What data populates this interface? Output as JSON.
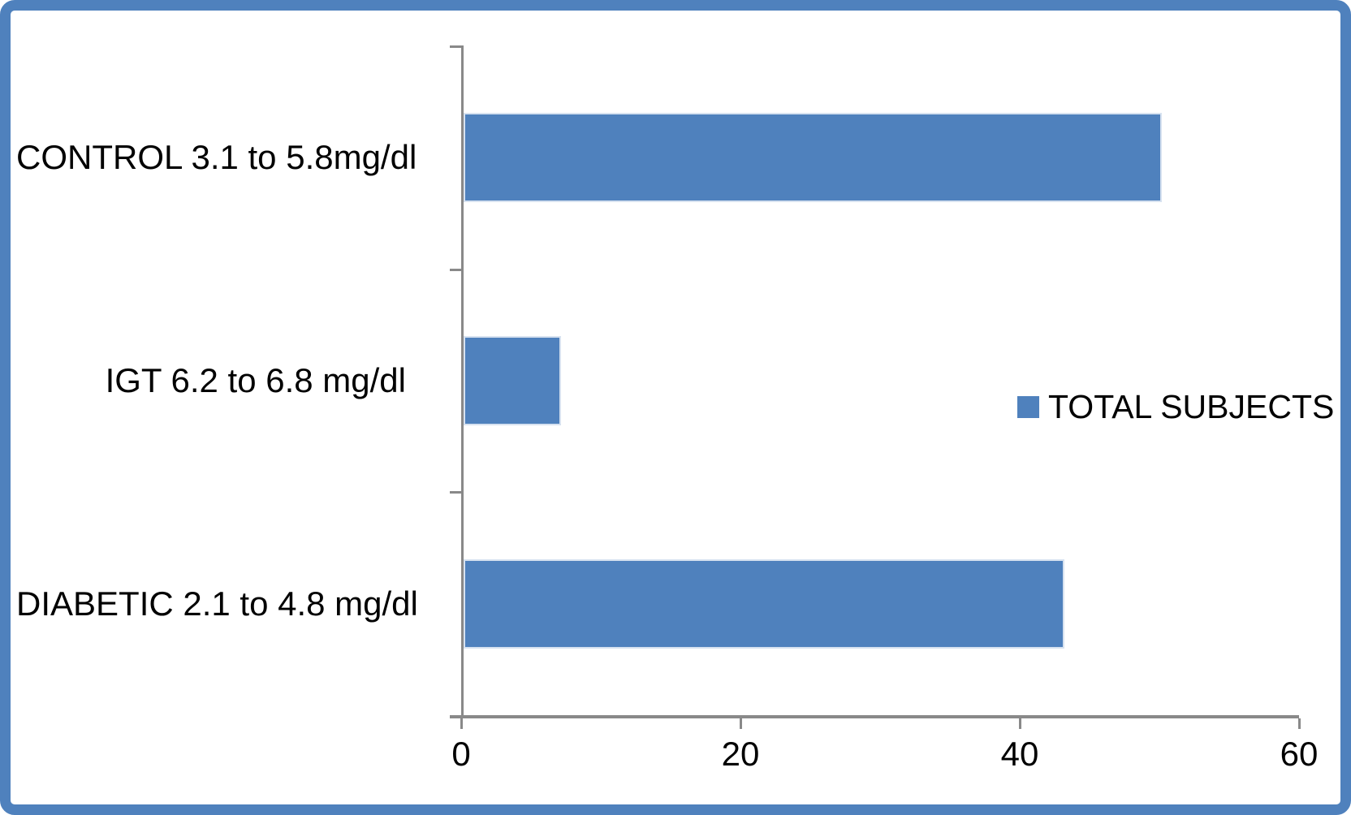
{
  "colors": {
    "bar_fill": "#4F81BD",
    "bar_edge": "#D7E2F0",
    "frame_border": "#4F81BD",
    "axis_line": "#898989",
    "text": "#000000",
    "background": "#FFFFFF"
  },
  "legend": {
    "label": "TOTAL SUBJECTS",
    "swatch_color": "#4F81BD",
    "position": "center-right"
  },
  "chart_data": {
    "type": "bar",
    "orientation": "horizontal",
    "title": "",
    "xlabel": "",
    "ylabel": "",
    "categories": [
      "CONTROL 3.1 to 5.8mg/dl",
      "IGT 6.2 to 6.8 mg/dl",
      "DIABETIC 2.1 to 4.8 mg/dl"
    ],
    "series": [
      {
        "name": "TOTAL SUBJECTS",
        "values": [
          50,
          7,
          43
        ]
      }
    ],
    "xlim": [
      0,
      60
    ],
    "xticks": [
      0,
      20,
      40,
      60
    ],
    "grid": false,
    "legend_position": "center-right",
    "category_order": "top-to-bottom"
  }
}
